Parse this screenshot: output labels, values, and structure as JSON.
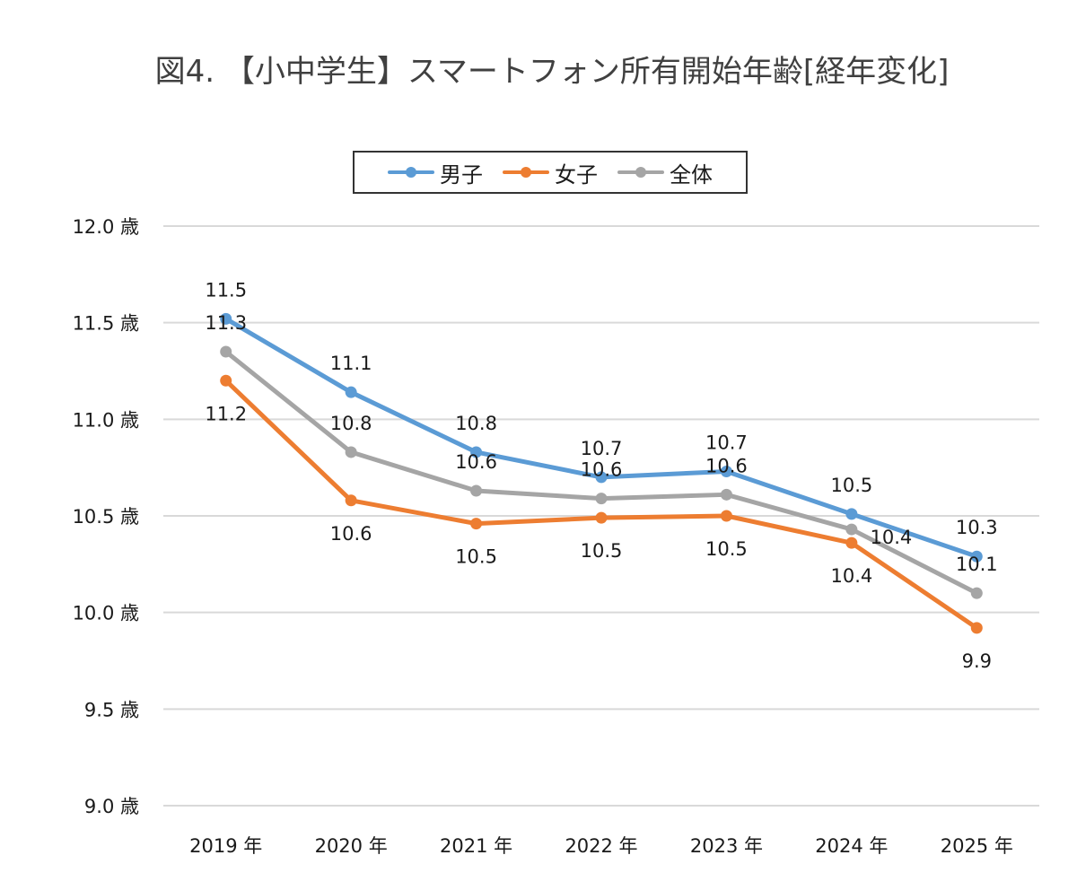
{
  "chart_data": {
    "type": "line",
    "title": "図4. 【小中学生】スマートフォン所有開始年齢[経年変化]",
    "xlabel": "",
    "ylabel": "",
    "categories": [
      "2019 年",
      "2020 年",
      "2021 年",
      "2022 年",
      "2023 年",
      "2024 年",
      "2025 年"
    ],
    "ylim": [
      9.0,
      12.0
    ],
    "yticks": [
      {
        "value": 12.0,
        "label": "12.0 歳"
      },
      {
        "value": 11.5,
        "label": "11.5 歳"
      },
      {
        "value": 11.0,
        "label": "11.0 歳"
      },
      {
        "value": 10.5,
        "label": "10.5 歳"
      },
      {
        "value": 10.0,
        "label": "10.0 歳"
      },
      {
        "value": 9.5,
        "label": "9.5 歳"
      },
      {
        "value": 9.0,
        "label": "9.0 歳"
      }
    ],
    "grid": true,
    "legend_position": "top-center",
    "series": [
      {
        "name": "男子",
        "color": "#5b9bd5",
        "values": [
          11.52,
          11.14,
          10.83,
          10.7,
          10.73,
          10.51,
          10.29
        ],
        "labels": [
          "11.5",
          "11.1",
          "10.8",
          "10.7",
          "10.7",
          "10.5",
          "10.3"
        ],
        "label_position": "above"
      },
      {
        "name": "女子",
        "color": "#ed7d31",
        "values": [
          11.2,
          10.58,
          10.46,
          10.49,
          10.5,
          10.36,
          9.92
        ],
        "labels": [
          "11.2",
          "10.6",
          "10.5",
          "10.5",
          "10.5",
          "10.4",
          "9.9"
        ],
        "label_position": "below"
      },
      {
        "name": "全体",
        "color": "#a5a5a5",
        "values": [
          11.35,
          10.83,
          10.63,
          10.59,
          10.61,
          10.43,
          10.1
        ],
        "labels": [
          "11.3",
          "10.8",
          "10.6",
          "10.6",
          "10.6",
          "10.4",
          "10.1"
        ],
        "label_position": "above"
      }
    ]
  },
  "legend": {
    "items": [
      {
        "label": "男子",
        "color": "#5b9bd5"
      },
      {
        "label": "女子",
        "color": "#ed7d31"
      },
      {
        "label": "全体",
        "color": "#a5a5a5"
      }
    ]
  }
}
